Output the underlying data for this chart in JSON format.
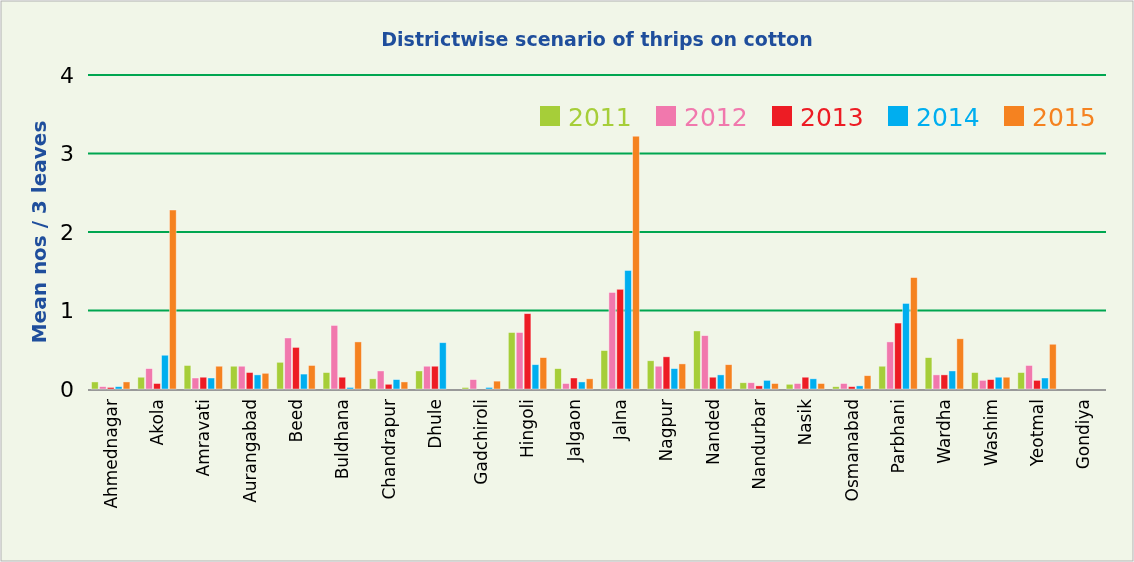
{
  "chart_data": {
    "type": "bar",
    "title": "Districtwise scenario of thrips on cotton",
    "ylabel": "Mean nos / 3 leaves",
    "categories": [
      "Ahmednagar",
      "Akola",
      "Amravati",
      "Aurangabad",
      "Beed",
      "Buldhana",
      "Chandrapur",
      "Dhule",
      "Gadchiroli",
      "Hingoli",
      "Jalgaon",
      "Jalna",
      "Nagpur",
      "Nanded",
      "Nandurbar",
      "Nasik",
      "Osmanabad",
      "Parbhani",
      "Wardha",
      "Washim",
      "Yeotmal",
      "Gondiya"
    ],
    "series": [
      {
        "name": "2011",
        "color": "#a6ce39",
        "values": [
          0.09,
          0.15,
          0.3,
          0.29,
          0.34,
          0.21,
          0.13,
          0.23,
          0.02,
          0.72,
          0.26,
          0.49,
          0.36,
          0.74,
          0.08,
          0.06,
          0.03,
          0.29,
          0.4,
          0.21,
          0.21,
          null
        ]
      },
      {
        "name": "2012",
        "color": "#f178ad",
        "values": [
          0.03,
          0.26,
          0.14,
          0.29,
          0.65,
          0.81,
          0.23,
          0.29,
          0.12,
          0.72,
          0.07,
          1.23,
          0.29,
          0.68,
          0.08,
          0.07,
          0.07,
          0.6,
          0.18,
          0.11,
          0.3,
          null
        ]
      },
      {
        "name": "2013",
        "color": "#ed1c24",
        "values": [
          0.02,
          0.07,
          0.15,
          0.21,
          0.53,
          0.15,
          0.06,
          0.29,
          null,
          0.96,
          0.14,
          1.27,
          0.41,
          0.15,
          0.04,
          0.15,
          0.03,
          0.84,
          0.18,
          0.12,
          0.11,
          null
        ]
      },
      {
        "name": "2014",
        "color": "#00aeef",
        "values": [
          0.03,
          0.43,
          0.14,
          0.18,
          0.19,
          0.02,
          0.12,
          0.59,
          0.02,
          0.31,
          0.09,
          1.51,
          0.26,
          0.18,
          0.11,
          0.13,
          0.04,
          1.09,
          0.23,
          0.15,
          0.14,
          null
        ]
      },
      {
        "name": "2015",
        "color": "#f58220",
        "values": [
          0.09,
          2.28,
          0.29,
          0.2,
          0.3,
          0.6,
          0.09,
          null,
          0.1,
          0.4,
          0.13,
          3.22,
          0.32,
          0.31,
          0.07,
          0.07,
          0.17,
          1.42,
          0.64,
          0.15,
          0.57,
          null
        ]
      }
    ],
    "ylim": [
      0,
      4
    ],
    "yticks": [
      0,
      1,
      2,
      3,
      4
    ],
    "grid": "y",
    "legend": "top right"
  }
}
